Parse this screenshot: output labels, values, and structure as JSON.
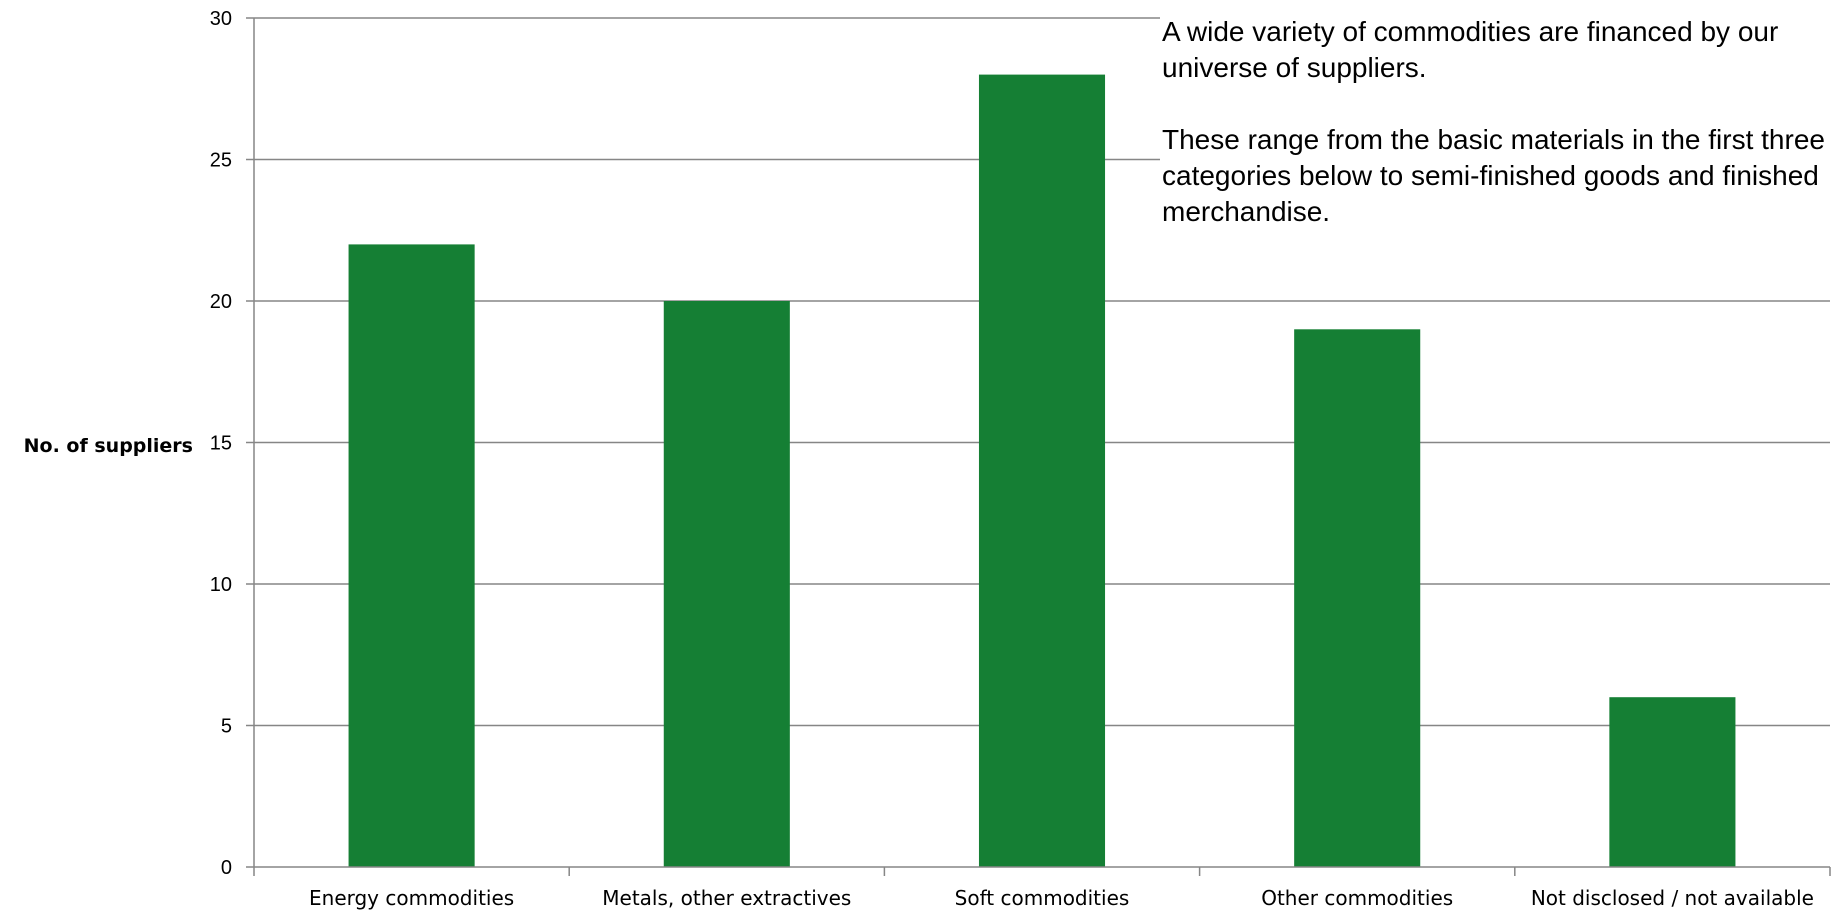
{
  "annotation": {
    "paragraph1": "A wide variety of commodities are financed by our universe of suppliers.",
    "paragraph2": "These range from the basic materials in the first three categories below to semi-finished goods and finished merchandise."
  },
  "chart_data": {
    "type": "bar",
    "title": "",
    "xlabel": "",
    "ylabel": "No. of suppliers",
    "categories": [
      "Energy commodities",
      "Metals, other extractives",
      "Soft commodities",
      "Other commodities",
      "Not disclosed / not available"
    ],
    "values": [
      22,
      20,
      28,
      19,
      6
    ],
    "ylim": [
      0,
      30
    ],
    "yticks": [
      "0",
      "5",
      "10",
      "15",
      "20",
      "25",
      "30"
    ],
    "grid": true,
    "legend": "none",
    "bar_color": "#157f34"
  }
}
